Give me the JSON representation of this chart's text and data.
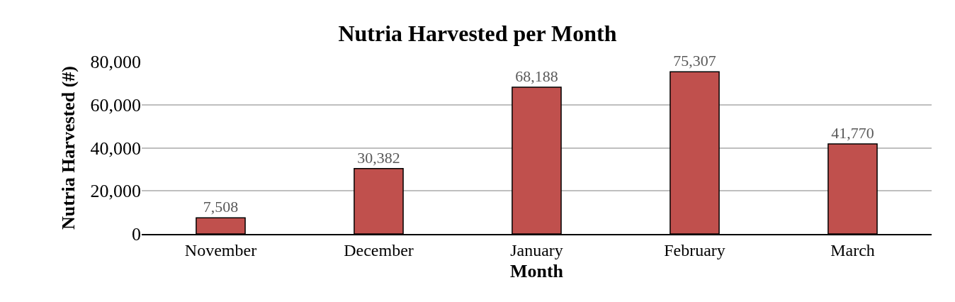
{
  "chart_data": {
    "type": "bar",
    "title": "Nutria Harvested per Month",
    "xlabel": "Month",
    "ylabel": "Nutria Harvested (#)",
    "categories": [
      "November",
      "December",
      "January",
      "February",
      "March"
    ],
    "values": [
      7508,
      30382,
      68188,
      75307,
      41770
    ],
    "color": "#c0504d",
    "ylim": [
      0,
      80000
    ],
    "yticks": [
      0,
      {
        "value": 20000,
        "label": "20,000"
      },
      {
        "value": 40000,
        "label": "40,000"
      },
      {
        "value": 60000,
        "label": "60,000"
      },
      {
        "value": 80000,
        "label": "80,000"
      }
    ],
    "value_labels": [
      "7,508",
      "30,382",
      "68,188",
      "75,307",
      "41,770"
    ],
    "grid": "y"
  }
}
